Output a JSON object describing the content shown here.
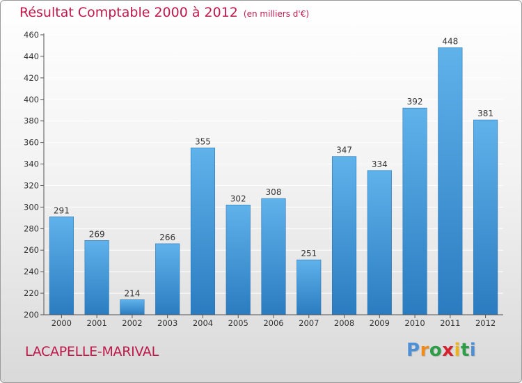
{
  "header": {
    "title": "Résultat Comptable 2000 à 2012",
    "unit": "(en milliers d'€)"
  },
  "footer": {
    "place_name": "LACAPELLE-MARIVAL",
    "logo": {
      "letters": [
        "P",
        "r",
        "o",
        "x",
        "i",
        "t",
        "i"
      ],
      "colors": [
        "#4f8fd6",
        "#f08b1d",
        "#2e9d47",
        "#d6212f",
        "#f0b41b",
        "#2e9d47",
        "#4f8fd6"
      ]
    }
  },
  "colors": {
    "bar_light": "#5fb2ea",
    "bar_dark": "#2a7cc0",
    "title": "#c0184a",
    "grid": "#ffffff"
  },
  "chart_data": {
    "type": "bar",
    "categories": [
      "2000",
      "2001",
      "2002",
      "2003",
      "2004",
      "2005",
      "2006",
      "2007",
      "2008",
      "2009",
      "2010",
      "2011",
      "2012"
    ],
    "values": [
      291,
      269,
      214,
      266,
      355,
      302,
      308,
      251,
      347,
      334,
      392,
      448,
      381
    ],
    "data_labels": [
      "291",
      "269",
      "214",
      "266",
      "355",
      "302",
      "308",
      "251",
      "347",
      "334",
      "392",
      "448",
      "381"
    ],
    "title": "Résultat Comptable 2000 à 2012",
    "subtitle": "(en milliers d'€)",
    "xlabel": "",
    "ylabel": "",
    "ylim": [
      200,
      460
    ],
    "yticks": [
      200,
      220,
      240,
      260,
      280,
      300,
      320,
      340,
      360,
      380,
      400,
      420,
      440,
      460
    ],
    "grid": true,
    "legend": "none"
  }
}
